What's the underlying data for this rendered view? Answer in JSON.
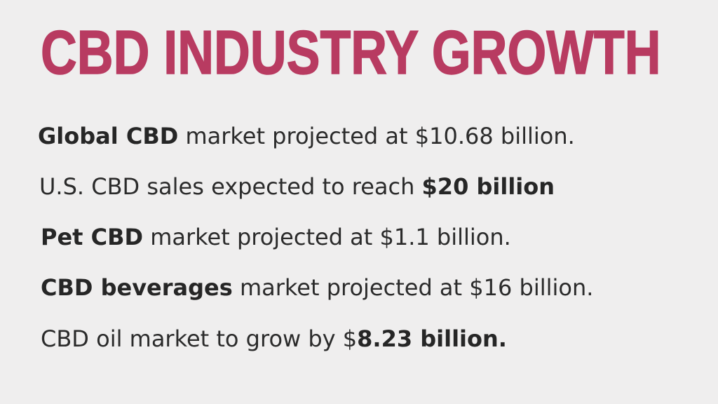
{
  "title": "CBD INDUSTRY GROWTH",
  "facts": [
    {
      "bold": "Global CBD",
      "text": " market projected at $10.68 billion."
    },
    {
      "text": "U.S. CBD sales expected to reach ",
      "bold": "$20 billion"
    },
    {
      "bold": "Pet CBD",
      "text": " market projected at $1.1 billion."
    },
    {
      "bold": "CBD beverages",
      "text": " market projected at $16 billion."
    },
    {
      "text": "CBD oil market to grow by $",
      "bold": "8.23 billion."
    }
  ],
  "colors": {
    "background": "#efeeee",
    "title": "#b83b61",
    "text": "#2b2b2b"
  }
}
